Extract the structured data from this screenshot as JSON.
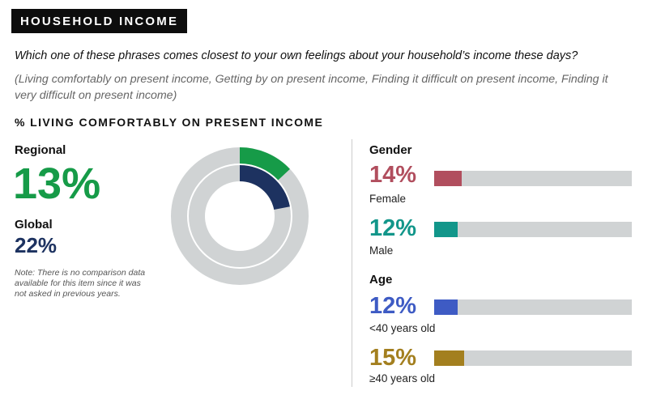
{
  "header": {
    "title": "HOUSEHOLD INCOME"
  },
  "question": "Which one of these phrases comes closest to your own feelings about your household’s income these days?",
  "options": "(Living comfortably on present income, Getting by on present income, Finding it difficult on present income, Finding it very difficult on present income)",
  "section_title": "% LIVING COMFORTABLY ON PRESENT INCOME",
  "regional": {
    "label": "Regional",
    "value": "13%",
    "color": "#169b48"
  },
  "global": {
    "label": "Global",
    "value": "22%",
    "color": "#1d3260"
  },
  "note": "Note: There is no comparison data available for this item since it was not asked in previous years.",
  "chart_data": [
    {
      "type": "pie",
      "variant": "nested-donut",
      "series": [
        {
          "name": "Regional",
          "value": 13,
          "color": "#169b48"
        },
        {
          "name": "Global",
          "value": 22,
          "color": "#1d3260"
        }
      ],
      "track_color": "#d0d3d4"
    },
    {
      "type": "bar",
      "orientation": "horizontal",
      "title": "Gender",
      "categories": [
        "Female",
        "Male"
      ],
      "values": [
        14,
        12
      ],
      "display_values": [
        "14%",
        "12%"
      ],
      "colors": [
        "#b14e5e",
        "#12968a"
      ],
      "xlim": [
        0,
        100
      ]
    },
    {
      "type": "bar",
      "orientation": "horizontal",
      "title": "Age",
      "categories": [
        "<40 years old",
        "≥40 years old"
      ],
      "values": [
        12,
        15
      ],
      "display_values": [
        "12%",
        "15%"
      ],
      "colors": [
        "#3e5bc4",
        "#a37f1f"
      ],
      "xlim": [
        0,
        100
      ]
    }
  ]
}
